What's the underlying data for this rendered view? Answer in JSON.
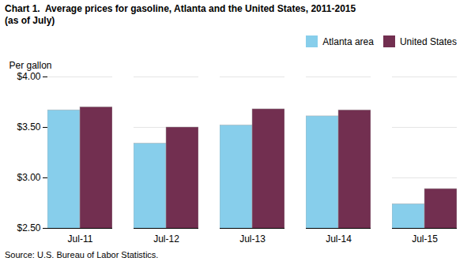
{
  "chart_data": {
    "type": "bar",
    "title": "Chart 1.  Average prices for gasoline, Atlanta and the United States, 2011-2015",
    "subtitle": "(as of July)",
    "ylabel": "Per gallon",
    "source": "Source: U.S. Bureau of Labor Statistics.",
    "categories": [
      "Jul-11",
      "Jul-12",
      "Jul-13",
      "Jul-14",
      "Jul-15"
    ],
    "series": [
      {
        "name": "Atlanta area",
        "color": "#87CEEB",
        "values": [
          3.67,
          3.34,
          3.52,
          3.61,
          2.74
        ]
      },
      {
        "name": "United States",
        "color": "#722F50",
        "values": [
          3.7,
          3.5,
          3.68,
          3.67,
          2.89
        ]
      }
    ],
    "ylim": [
      2.5,
      4.0
    ],
    "yticks": [
      {
        "value": 2.5,
        "label": "$2.50"
      },
      {
        "value": 3.0,
        "label": "$3.00"
      },
      {
        "value": 3.5,
        "label": "$3.50"
      },
      {
        "value": 4.0,
        "label": "$4.00"
      }
    ],
    "grid": true,
    "legend": "upper right"
  }
}
